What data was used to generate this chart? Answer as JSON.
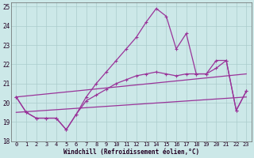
{
  "xlabel": "Windchill (Refroidissement éolien,°C)",
  "background_color": "#cce8e8",
  "grid_color": "#aacccc",
  "line_color": "#993399",
  "xlim": [
    -0.5,
    23.5
  ],
  "ylim": [
    18,
    25.2
  ],
  "yticks": [
    18,
    19,
    20,
    21,
    22,
    23,
    24,
    25
  ],
  "xticks": [
    0,
    1,
    2,
    3,
    4,
    5,
    6,
    7,
    8,
    9,
    10,
    11,
    12,
    13,
    14,
    15,
    16,
    17,
    18,
    19,
    20,
    21,
    22,
    23
  ],
  "curve_main": {
    "x": [
      0,
      1,
      2,
      3,
      4,
      5,
      6,
      7,
      8,
      9,
      10,
      11,
      12,
      13,
      14,
      15,
      16,
      17,
      18,
      19,
      20,
      21,
      22,
      23
    ],
    "y": [
      20.3,
      19.5,
      19.2,
      19.2,
      19.2,
      18.6,
      19.4,
      20.3,
      21.0,
      21.6,
      22.2,
      22.8,
      23.4,
      24.2,
      24.9,
      24.5,
      22.8,
      23.6,
      21.5,
      21.5,
      22.2,
      22.2,
      19.6,
      20.6
    ]
  },
  "curve2": {
    "x": [
      0,
      1,
      2,
      3,
      4,
      5,
      6,
      7,
      8,
      9,
      10,
      11,
      12,
      13,
      14,
      15,
      16,
      17,
      18,
      19,
      20,
      21,
      22,
      23
    ],
    "y": [
      20.3,
      19.5,
      19.2,
      19.2,
      19.2,
      18.6,
      19.4,
      20.1,
      20.4,
      20.7,
      21.0,
      21.2,
      21.4,
      21.5,
      21.6,
      21.5,
      21.4,
      21.5,
      21.5,
      21.5,
      21.8,
      22.2,
      19.6,
      20.6
    ]
  },
  "curve3": {
    "x": [
      0,
      23
    ],
    "y": [
      20.3,
      21.5
    ]
  },
  "curve4": {
    "x": [
      0,
      23
    ],
    "y": [
      19.5,
      20.3
    ]
  }
}
